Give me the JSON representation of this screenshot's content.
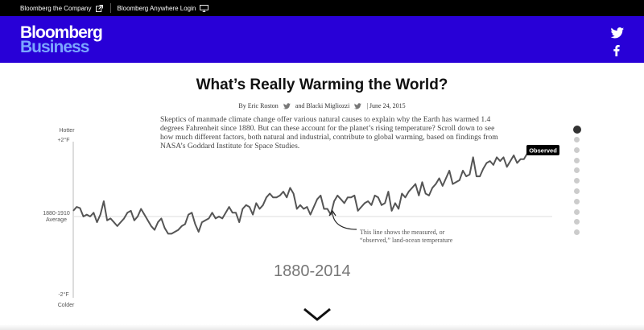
{
  "topbar": {
    "company_link": "Bloomberg the Company",
    "login_link": "Bloomberg Anywhere Login"
  },
  "brand": {
    "logo_line1": "Bloomberg",
    "logo_line2": "Business",
    "bg_color": "#2800d7"
  },
  "social": {
    "icons": [
      "twitter-icon",
      "facebook-icon"
    ]
  },
  "article": {
    "headline": "What’s Really Warming the World?",
    "byline_prefix": "By Eric Roston",
    "byline_and": "and Blacki Migliozzi",
    "byline_date": "| June 24, 2015",
    "intro": "Skeptics of manmade climate change offer various natural causes to explain why the Earth has warmed 1.4 degrees Fahrenheit since 1880. But can these account for the planet’s rising temperature? Scroll down to see how much different factors, both natural and industrial, contribute to global warming, based on findings from NASA’s Goddard Institute for Space Studies."
  },
  "chart_data": {
    "type": "line",
    "y_axis": {
      "top_label": "Hotter",
      "top_tick": "+2°F",
      "mid_tick_line1": "1880-1910",
      "mid_tick_line2": "Average",
      "bottom_tick": "-2°F",
      "bottom_label": "Colder"
    },
    "ylim": [
      -2,
      2
    ],
    "xlim": [
      1880,
      2014
    ],
    "series": [
      {
        "name": "Observed",
        "color": "#555555",
        "x": [
          1880,
          1881,
          1882,
          1883,
          1884,
          1885,
          1886,
          1887,
          1888,
          1889,
          1890,
          1891,
          1892,
          1893,
          1894,
          1895,
          1896,
          1897,
          1898,
          1899,
          1900,
          1901,
          1902,
          1903,
          1904,
          1905,
          1906,
          1907,
          1908,
          1909,
          1910,
          1911,
          1912,
          1913,
          1914,
          1915,
          1916,
          1917,
          1918,
          1919,
          1920,
          1921,
          1922,
          1923,
          1924,
          1925,
          1926,
          1927,
          1928,
          1929,
          1930,
          1931,
          1932,
          1933,
          1934,
          1935,
          1936,
          1937,
          1938,
          1939,
          1940,
          1941,
          1942,
          1943,
          1944,
          1945,
          1946,
          1947,
          1948,
          1949,
          1950,
          1951,
          1952,
          1953,
          1954,
          1955,
          1956,
          1957,
          1958,
          1959,
          1960,
          1961,
          1962,
          1963,
          1964,
          1965,
          1966,
          1967,
          1968,
          1969,
          1970,
          1971,
          1972,
          1973,
          1974,
          1975,
          1976,
          1977,
          1978,
          1979,
          1980,
          1981,
          1982,
          1983,
          1984,
          1985,
          1986,
          1987,
          1988,
          1989,
          1990,
          1991,
          1992,
          1993,
          1994,
          1995,
          1996,
          1997,
          1998,
          1999,
          2000,
          2001,
          2002,
          2003,
          2004,
          2005,
          2006,
          2007,
          2008,
          2009,
          2010,
          2011,
          2012,
          2013,
          2014
        ],
        "y": [
          0.15,
          0.25,
          0.22,
          0.0,
          0.05,
          0.0,
          0.1,
          -0.15,
          0.05,
          0.4,
          -0.1,
          -0.05,
          -0.15,
          -0.25,
          -0.15,
          -0.05,
          0.1,
          0.15,
          -0.1,
          0.0,
          0.2,
          0.05,
          -0.1,
          -0.25,
          -0.35,
          -0.15,
          -0.05,
          -0.3,
          -0.45,
          -0.45,
          -0.4,
          -0.35,
          -0.25,
          -0.2,
          0.05,
          0.1,
          -0.2,
          -0.4,
          -0.15,
          -0.1,
          -0.05,
          0.1,
          -0.05,
          0.0,
          -0.05,
          0.1,
          0.25,
          0.1,
          0.1,
          -0.15,
          0.2,
          0.3,
          0.25,
          0.05,
          0.35,
          0.2,
          0.3,
          0.5,
          0.6,
          0.5,
          0.5,
          0.55,
          0.65,
          0.5,
          0.75,
          0.6,
          0.2,
          0.3,
          0.2,
          0.25,
          0.05,
          0.25,
          0.45,
          0.55,
          0.2,
          0.2,
          0.05,
          0.4,
          0.55,
          0.45,
          0.35,
          0.5,
          0.5,
          0.55,
          0.15,
          0.25,
          0.35,
          0.4,
          0.3,
          0.55,
          0.5,
          0.3,
          0.35,
          0.65,
          0.15,
          0.35,
          0.2,
          0.6,
          0.5,
          0.65,
          0.75,
          0.85,
          0.55,
          0.9,
          0.6,
          0.55,
          0.75,
          0.85,
          1.0,
          0.8,
          1.0,
          1.2,
          0.85,
          0.9,
          0.95,
          1.2,
          1.05,
          1.1,
          1.55,
          1.05,
          1.05,
          1.25,
          1.4,
          1.45,
          1.35,
          1.55,
          1.45,
          1.55,
          1.3,
          1.45,
          1.6,
          1.4,
          1.5,
          1.5,
          1.65
        ]
      }
    ],
    "series_label": "Observed",
    "annotation_line1": "This line shows the measured, or",
    "annotation_line2": "“observed,” land-ocean temperature",
    "year_range": "1880-2014"
  },
  "nav_dots": {
    "count": 11,
    "active_index": 0
  }
}
